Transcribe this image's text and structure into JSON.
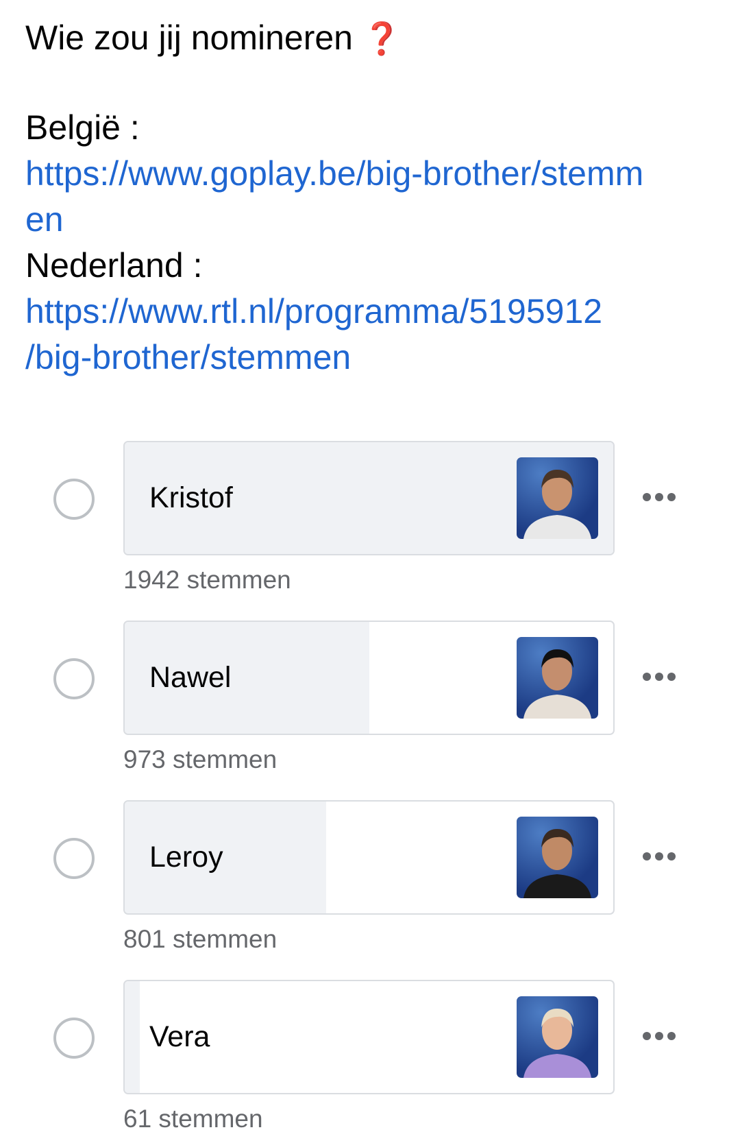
{
  "post": {
    "title": "Wie zou jij nomineren",
    "title_emoji": "❓",
    "belgie_label": "België :",
    "belgie_link_line1": "https://www.goplay.be/big-brother/stemm",
    "belgie_link_line2": "en",
    "nederland_label": "Nederland :",
    "nederland_link_line1": "https://www.rtl.nl/programma/5195912",
    "nederland_link_line2": "/big-brother/stemmen"
  },
  "colors": {
    "link": "#1f66d1",
    "bar_fill": "#f0f2f5",
    "secondary_text": "#65676b"
  },
  "poll": {
    "max_votes": 1942,
    "options": [
      {
        "name": "Kristof",
        "votes": 1942,
        "votes_label": "1942 stemmen",
        "photo_colors": [
          "#c9936f",
          "#4a3526",
          "#e8e8e8"
        ]
      },
      {
        "name": "Nawel",
        "votes": 973,
        "votes_label": "973 stemmen",
        "photo_colors": [
          "#c48e6e",
          "#111111",
          "#e6dfd6"
        ]
      },
      {
        "name": "Leroy",
        "votes": 801,
        "votes_label": "801 stemmen",
        "photo_colors": [
          "#c08a66",
          "#3a2a20",
          "#1a1a1a"
        ]
      },
      {
        "name": "Vera",
        "votes": 61,
        "votes_label": "61 stemmen",
        "photo_colors": [
          "#e8b899",
          "#e9dcc4",
          "#a98fd8"
        ]
      }
    ]
  }
}
